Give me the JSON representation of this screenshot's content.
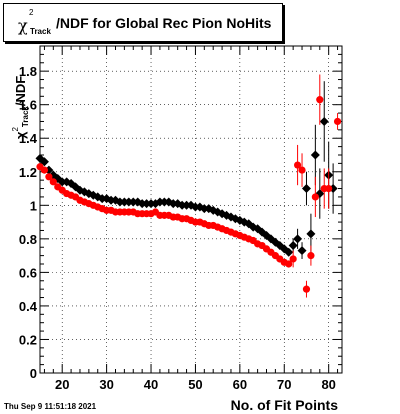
{
  "title": {
    "chi": "χ",
    "sup": "2",
    "sub": "Track",
    "rest": "/NDF for Global Rec Pion NoHits"
  },
  "ylabel": {
    "chi": "χ",
    "sup": "2",
    "sub": "Track",
    "rest": "/NDF"
  },
  "xlabel": "No. of Fit Points",
  "datestamp": "Thu Sep  9 11:51:18 2021",
  "colors": {
    "series_black": "#000000",
    "series_red": "#ff0000",
    "frame": "#000000",
    "grid": "#000000"
  },
  "chart_data": {
    "type": "scatter",
    "title": "χ²_Track/NDF for Global Rec Pion NoHits",
    "xlabel": "No. of Fit Points",
    "ylabel": "χ²_Track/NDF",
    "xlim": [
      15,
      83
    ],
    "ylim": [
      0,
      1.95
    ],
    "grid": true,
    "x_ticks": [
      20,
      30,
      40,
      50,
      60,
      70,
      80
    ],
    "y_ticks": [
      0,
      0.2,
      0.4,
      0.6,
      0.8,
      1,
      1.2,
      1.4,
      1.6,
      1.8
    ],
    "series": [
      {
        "color": "#000000",
        "marker": "diamond",
        "x": [
          15,
          16,
          17,
          18,
          19,
          20,
          21,
          22,
          23,
          24,
          25,
          26,
          27,
          28,
          29,
          30,
          31,
          32,
          33,
          34,
          35,
          36,
          37,
          38,
          39,
          40,
          41,
          42,
          43,
          44,
          45,
          46,
          47,
          48,
          49,
          50,
          51,
          52,
          53,
          54,
          55,
          56,
          57,
          58,
          59,
          60,
          61,
          62,
          63,
          64,
          65,
          66,
          67,
          68,
          69,
          70,
          71,
          72,
          73,
          74,
          75,
          76,
          77,
          78,
          79,
          80,
          81
        ],
        "y": [
          1.28,
          1.26,
          1.21,
          1.18,
          1.16,
          1.14,
          1.14,
          1.13,
          1.11,
          1.09,
          1.08,
          1.07,
          1.06,
          1.05,
          1.04,
          1.04,
          1.03,
          1.03,
          1.02,
          1.02,
          1.02,
          1.02,
          1.02,
          1.01,
          1.01,
          1.01,
          1.01,
          1.02,
          1.02,
          1.02,
          1.01,
          1.01,
          1.0,
          1.0,
          1.0,
          0.99,
          0.99,
          0.98,
          0.98,
          0.97,
          0.96,
          0.95,
          0.94,
          0.93,
          0.92,
          0.91,
          0.9,
          0.89,
          0.87,
          0.86,
          0.84,
          0.82,
          0.8,
          0.78,
          0.76,
          0.74,
          0.72,
          0.76,
          0.8,
          0.73,
          1.1,
          0.83,
          1.3,
          1.07,
          1.5,
          1.18,
          1.1
        ],
        "yerr": [
          0.01,
          0.01,
          0.01,
          0.01,
          0.01,
          0.01,
          0.01,
          0.01,
          0.01,
          0.01,
          0.01,
          0.01,
          0.01,
          0.01,
          0.01,
          0.01,
          0.01,
          0.01,
          0.01,
          0.01,
          0.01,
          0.01,
          0.01,
          0.01,
          0.01,
          0.01,
          0.01,
          0.01,
          0.01,
          0.01,
          0.01,
          0.01,
          0.01,
          0.01,
          0.01,
          0.01,
          0.01,
          0.01,
          0.01,
          0.01,
          0.01,
          0.01,
          0.01,
          0.01,
          0.01,
          0.01,
          0.01,
          0.01,
          0.01,
          0.01,
          0.01,
          0.01,
          0.01,
          0.01,
          0.01,
          0.01,
          0.02,
          0.04,
          0.06,
          0.05,
          0.1,
          0.12,
          0.18,
          0.15,
          0.24,
          0.2,
          0.15
        ]
      },
      {
        "color": "#ff0000",
        "marker": "circle",
        "x": [
          15,
          16,
          17,
          18,
          19,
          20,
          21,
          22,
          23,
          24,
          25,
          26,
          27,
          28,
          29,
          30,
          31,
          32,
          33,
          34,
          35,
          36,
          37,
          38,
          39,
          40,
          41,
          42,
          43,
          44,
          45,
          46,
          47,
          48,
          49,
          50,
          51,
          52,
          53,
          54,
          55,
          56,
          57,
          58,
          59,
          60,
          61,
          62,
          63,
          64,
          65,
          66,
          67,
          68,
          69,
          70,
          71,
          72,
          73,
          74,
          75,
          76,
          77,
          78,
          79,
          80,
          82
        ],
        "y": [
          1.23,
          1.21,
          1.17,
          1.14,
          1.11,
          1.09,
          1.07,
          1.06,
          1.05,
          1.03,
          1.02,
          1.01,
          1.0,
          0.99,
          0.98,
          0.97,
          0.97,
          0.96,
          0.96,
          0.96,
          0.96,
          0.96,
          0.95,
          0.95,
          0.95,
          0.95,
          0.96,
          0.94,
          0.94,
          0.94,
          0.93,
          0.93,
          0.92,
          0.92,
          0.91,
          0.9,
          0.9,
          0.89,
          0.88,
          0.88,
          0.87,
          0.86,
          0.85,
          0.84,
          0.83,
          0.82,
          0.81,
          0.8,
          0.79,
          0.77,
          0.76,
          0.74,
          0.72,
          0.7,
          0.68,
          0.66,
          0.65,
          0.68,
          1.24,
          1.21,
          0.5,
          0.7,
          1.05,
          1.63,
          1.1,
          1.1,
          1.5
        ],
        "yerr": [
          0.01,
          0.01,
          0.01,
          0.01,
          0.01,
          0.01,
          0.01,
          0.01,
          0.01,
          0.01,
          0.01,
          0.01,
          0.01,
          0.01,
          0.01,
          0.01,
          0.01,
          0.01,
          0.01,
          0.01,
          0.01,
          0.01,
          0.01,
          0.01,
          0.01,
          0.01,
          0.01,
          0.01,
          0.01,
          0.01,
          0.01,
          0.01,
          0.01,
          0.01,
          0.01,
          0.01,
          0.01,
          0.01,
          0.01,
          0.01,
          0.01,
          0.01,
          0.01,
          0.01,
          0.01,
          0.01,
          0.01,
          0.01,
          0.01,
          0.01,
          0.01,
          0.01,
          0.01,
          0.01,
          0.01,
          0.01,
          0.02,
          0.05,
          0.12,
          0.1,
          0.05,
          0.06,
          0.12,
          0.15,
          0.12,
          0.12,
          0.05
        ]
      }
    ]
  }
}
